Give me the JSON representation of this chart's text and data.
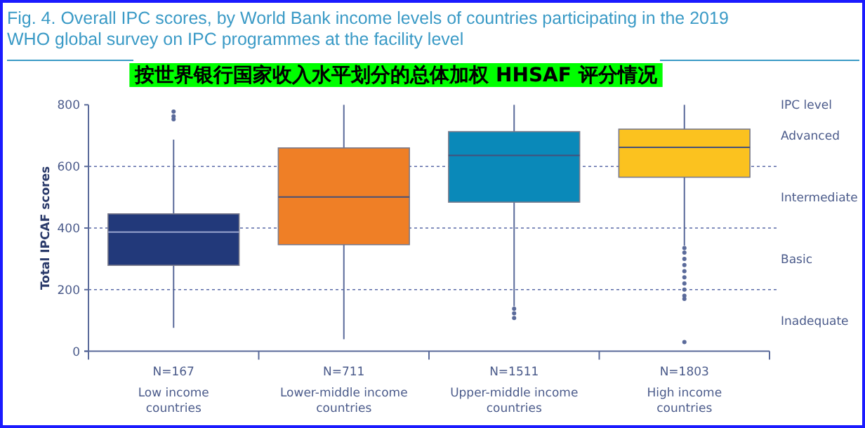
{
  "chart_data": {
    "type": "box",
    "title": "Fig. 4. Overall IPC scores, by World Bank income levels of countries participating in the 2019 WHO global survey on IPC programmes at the facility level",
    "subtitle": "按世界银行国家收入水平划分的总体加权 HHSAF 评分情况",
    "ylabel": "Total IPCAF scores",
    "categories": [
      "Low income countries",
      "Lower-middle income countries",
      "Upper-middle income countries",
      "High income countries"
    ],
    "colors": [
      "#22397a",
      "#ef7f26",
      "#0a89b9",
      "#fbc21f"
    ],
    "boxes": [
      {
        "low": 76,
        "q1": 279,
        "median": 387,
        "q3": 446,
        "high": 687,
        "outliers": [
          778,
          763,
          753
        ]
      },
      {
        "low": 39,
        "q1": 346,
        "median": 501,
        "q3": 660,
        "high": 800
      },
      {
        "low": 146,
        "q1": 484,
        "median": 636,
        "q3": 713,
        "high": 800,
        "outliers": [
          138,
          123,
          108
        ]
      },
      {
        "low": 343,
        "q1": 565,
        "median": 662,
        "q3": 721,
        "high": 800,
        "outliers": [
          335,
          320,
          300,
          280,
          260,
          240,
          220,
          200,
          180,
          170,
          30
        ]
      }
    ],
    "ylim": [
      0,
      800
    ],
    "yticks": [
      0,
      200,
      400,
      600,
      800
    ],
    "grid": "y",
    "line_style": "dotted",
    "legend_title": "IPC level",
    "annotations": [
      "N=167",
      "N=711",
      "N=1511",
      "N=1803",
      "Advanced",
      "Intermediate",
      "Basic",
      "Inadequate"
    ]
  }
}
